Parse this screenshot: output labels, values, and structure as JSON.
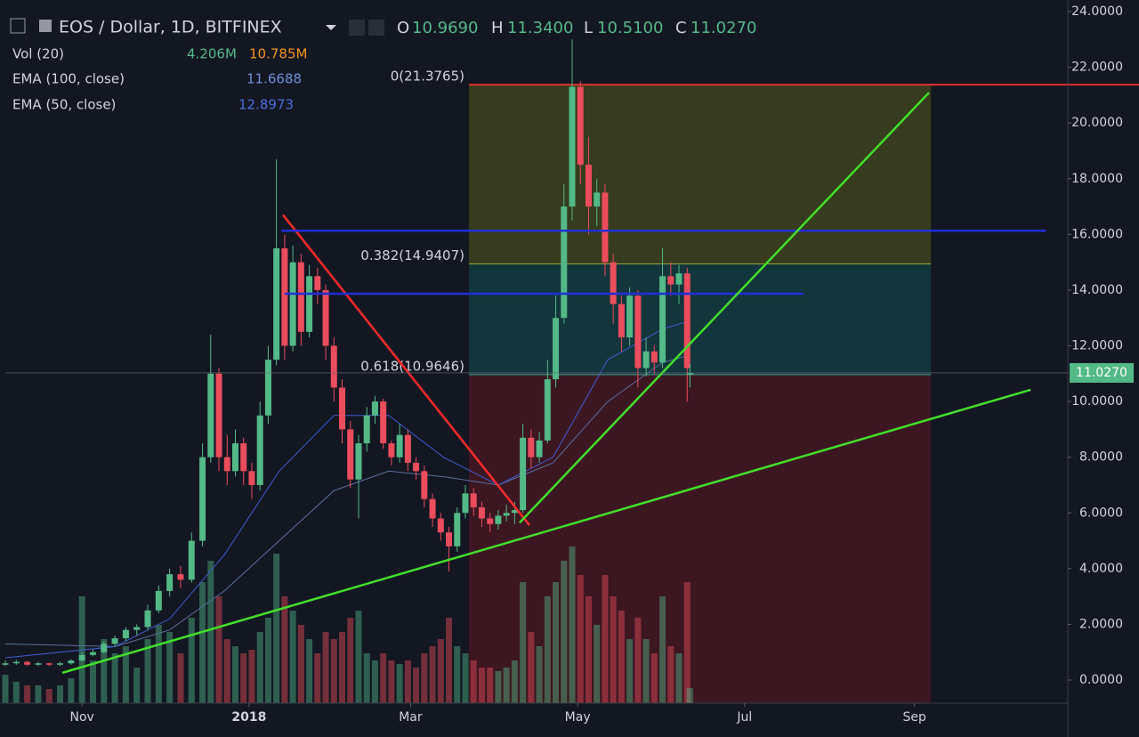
{
  "header": {
    "title": "EOS / Dollar, 1D, BITFINEX",
    "ohlc": [
      {
        "key": "O",
        "value": "10.9690"
      },
      {
        "key": "H",
        "value": "11.3400"
      },
      {
        "key": "L",
        "value": "10.5100"
      },
      {
        "key": "C",
        "value": "11.0270"
      }
    ],
    "studies": [
      {
        "name": "Vol (20)",
        "values": [
          "4.206M",
          "10.785M"
        ]
      },
      {
        "name": "EMA (100, close)",
        "values": [
          "11.6688"
        ]
      },
      {
        "name": "EMA (50, close)",
        "values": [
          "12.8973"
        ]
      }
    ]
  },
  "chart_data": {
    "type": "candlestick",
    "xlim": [
      0,
      388
    ],
    "xticks": [
      {
        "value": 28,
        "label": "Nov"
      },
      {
        "value": 89,
        "label": "2018"
      },
      {
        "value": 148,
        "label": "Mar"
      },
      {
        "value": 209,
        "label": "May"
      },
      {
        "value": 270,
        "label": "Jul"
      },
      {
        "value": 332,
        "label": "Sep"
      }
    ],
    "ylim": [
      0,
      24
    ],
    "yticks": [
      {
        "value": 0,
        "label": "0.0000"
      },
      {
        "value": 2,
        "label": "2.0000"
      },
      {
        "value": 4,
        "label": "4.0000"
      },
      {
        "value": 6,
        "label": "6.0000"
      },
      {
        "value": 8,
        "label": "8.0000"
      },
      {
        "value": 10,
        "label": "10.0000"
      },
      {
        "value": 12,
        "label": "12.0000"
      },
      {
        "value": 14,
        "label": "14.0000"
      },
      {
        "value": 16,
        "label": "16.0000"
      },
      {
        "value": 18,
        "label": "18.0000"
      },
      {
        "value": 20,
        "label": "20.0000"
      },
      {
        "value": 22,
        "label": "22.0000"
      },
      {
        "value": 24,
        "label": "24.0000"
      }
    ],
    "up_color": "#53b987",
    "down_color": "#eb4d5c",
    "x": [
      0,
      4,
      8,
      12,
      16,
      20,
      24,
      28,
      32,
      36,
      40,
      44,
      48,
      52,
      56,
      60,
      64,
      68,
      72,
      75,
      78,
      81,
      84,
      87,
      90,
      93,
      96,
      99,
      102,
      105,
      108,
      111,
      114,
      117,
      120,
      123,
      126,
      129,
      132,
      135,
      138,
      141,
      144,
      147,
      150,
      153,
      156,
      159,
      162,
      165,
      168,
      171,
      174,
      177,
      180,
      183,
      186,
      189,
      192,
      195,
      198,
      201,
      204,
      207,
      210,
      213,
      216,
      219,
      222,
      225,
      228,
      231,
      234,
      237,
      240,
      243,
      246,
      249,
      250
    ],
    "open": [
      0.55,
      0.6,
      0.65,
      0.55,
      0.6,
      0.55,
      0.6,
      0.7,
      0.9,
      1.0,
      1.3,
      1.5,
      1.8,
      1.9,
      2.5,
      3.2,
      3.8,
      3.6,
      5.0,
      8.0,
      11.0,
      8.0,
      7.5,
      8.5,
      7.5,
      7.0,
      9.5,
      11.5,
      15.5,
      12.0,
      15.0,
      12.5,
      14.5,
      14.0,
      12.0,
      10.5,
      9.0,
      7.2,
      8.5,
      9.5,
      10.0,
      8.5,
      8.0,
      8.8,
      7.8,
      7.5,
      6.5,
      5.8,
      5.3,
      4.8,
      6.0,
      6.7,
      6.2,
      5.8,
      5.6,
      5.9,
      6.0,
      6.1,
      8.7,
      8.0,
      8.6,
      10.8,
      13.0,
      17.0,
      21.3,
      18.5,
      17.0,
      17.5,
      15.0,
      13.5,
      12.3,
      13.8,
      11.2,
      11.8,
      11.4,
      14.5,
      14.2,
      14.6,
      10.969
    ],
    "high": [
      0.7,
      0.72,
      0.7,
      0.65,
      0.62,
      0.65,
      0.75,
      1.0,
      1.1,
      1.4,
      1.6,
      1.9,
      2.0,
      2.7,
      3.4,
      4.0,
      4.1,
      5.3,
      8.5,
      12.4,
      11.2,
      8.8,
      9.0,
      8.7,
      7.8,
      10.0,
      12.0,
      18.7,
      16.0,
      15.6,
      15.3,
      14.9,
      14.8,
      14.2,
      12.3,
      10.8,
      9.3,
      8.8,
      9.8,
      10.2,
      10.1,
      8.6,
      9.2,
      9.0,
      8.0,
      7.7,
      6.7,
      6.0,
      5.5,
      6.2,
      7.0,
      6.9,
      6.4,
      6.0,
      6.1,
      6.3,
      6.4,
      9.2,
      9.0,
      8.9,
      11.5,
      13.8,
      17.8,
      23.0,
      21.5,
      19.5,
      18.0,
      17.8,
      15.3,
      13.8,
      14.1,
      14.0,
      12.3,
      12.0,
      15.5,
      15.0,
      14.9,
      14.8,
      11.34
    ],
    "low": [
      0.5,
      0.55,
      0.5,
      0.5,
      0.5,
      0.5,
      0.55,
      0.65,
      0.85,
      0.95,
      1.2,
      1.4,
      1.6,
      1.8,
      2.4,
      3.0,
      3.3,
      3.5,
      4.8,
      7.8,
      7.5,
      7.0,
      7.3,
      7.0,
      6.5,
      6.8,
      9.2,
      11.3,
      11.5,
      11.8,
      12.0,
      12.3,
      13.5,
      11.5,
      10.0,
      8.5,
      6.9,
      5.8,
      8.2,
      9.2,
      8.3,
      7.7,
      7.8,
      7.5,
      7.2,
      6.2,
      5.5,
      5.0,
      3.9,
      4.6,
      5.8,
      5.9,
      5.5,
      5.3,
      5.4,
      5.7,
      5.6,
      6.0,
      7.6,
      7.8,
      8.5,
      10.5,
      12.8,
      16.5,
      17.8,
      16.0,
      16.3,
      14.5,
      12.8,
      11.8,
      12.0,
      10.5,
      10.9,
      11.0,
      11.2,
      13.8,
      13.5,
      10.0,
      10.51
    ],
    "close": [
      0.6,
      0.65,
      0.55,
      0.6,
      0.55,
      0.6,
      0.7,
      0.9,
      1.0,
      1.3,
      1.5,
      1.8,
      1.9,
      2.5,
      3.2,
      3.8,
      3.6,
      5.0,
      8.0,
      11.0,
      8.0,
      7.5,
      8.5,
      7.5,
      7.0,
      9.5,
      11.5,
      15.5,
      12.0,
      15.0,
      12.5,
      14.5,
      14.0,
      12.0,
      10.5,
      9.0,
      7.2,
      8.5,
      9.5,
      10.0,
      8.5,
      8.0,
      8.8,
      7.8,
      7.5,
      6.5,
      5.8,
      5.3,
      4.8,
      6.0,
      6.7,
      6.2,
      5.8,
      5.6,
      5.9,
      6.0,
      6.1,
      8.7,
      8.0,
      8.6,
      10.8,
      13.0,
      17.0,
      21.3,
      18.5,
      17.0,
      17.5,
      15.0,
      13.5,
      12.3,
      13.8,
      11.2,
      11.8,
      11.4,
      14.5,
      14.2,
      14.6,
      11.2,
      11.027
    ],
    "volume": [
      8,
      6,
      5,
      5,
      4,
      5,
      7,
      30,
      12,
      18,
      14,
      16,
      10,
      18,
      22,
      20,
      14,
      24,
      34,
      40,
      30,
      18,
      16,
      14,
      15,
      20,
      24,
      42,
      30,
      26,
      22,
      18,
      14,
      20,
      18,
      20,
      24,
      26,
      14,
      12,
      14,
      12,
      11,
      12,
      10,
      14,
      16,
      18,
      24,
      16,
      14,
      12,
      10,
      10,
      9,
      10,
      12,
      34,
      20,
      16,
      30,
      34,
      40,
      44,
      36,
      30,
      22,
      36,
      30,
      26,
      18,
      24,
      18,
      14,
      30,
      16,
      14,
      34,
      4.206
    ],
    "vlim": [
      0,
      200
    ],
    "ema": [
      {
        "name": "EMA (100, close)",
        "color": "#5b6f9e",
        "x": [
          0,
          40,
          60,
          80,
          100,
          120,
          140,
          160,
          180,
          200,
          220,
          240,
          250
        ],
        "values": [
          1.3,
          1.2,
          1.8,
          3.2,
          5.0,
          6.8,
          7.5,
          7.3,
          7.0,
          7.8,
          10.0,
          11.4,
          11.67
        ]
      },
      {
        "name": "EMA (50, close)",
        "color": "#3f5ccf",
        "x": [
          0,
          40,
          60,
          80,
          100,
          120,
          140,
          160,
          180,
          200,
          220,
          240,
          250
        ],
        "values": [
          0.8,
          1.2,
          2.2,
          4.5,
          7.5,
          9.5,
          9.5,
          8.0,
          7.0,
          8.0,
          11.5,
          12.6,
          12.9
        ]
      }
    ],
    "last_price": {
      "value": 11.027,
      "label": "11.0270"
    },
    "fib": {
      "x": [
        169.3,
        338
      ],
      "levels": [
        {
          "value": 21.3765,
          "label": "0(21.3765)",
          "color": "#e03030"
        },
        {
          "value": 14.9407,
          "label": "0.382(14.9407)",
          "color": "#9aa83a"
        },
        {
          "value": 10.9646,
          "label": "0.618(10.9646)",
          "color": "#3fa58f"
        }
      ],
      "fills": [
        "rgba(120,130,20,0.35)",
        "rgba(20,110,110,0.35)",
        "rgba(110,25,35,0.45)"
      ]
    },
    "drawings": [
      {
        "color": "#ff2a2a",
        "x": [
          101.4,
          191.4
        ],
        "y": [
          16.7,
          5.56
        ]
      },
      {
        "color": "#1f2fd8",
        "x": [
          100.8,
          380
        ],
        "y": [
          16.13,
          16.13
        ]
      },
      {
        "color": "#1f2fd8",
        "x": [
          102,
          291.5
        ],
        "y": [
          13.87,
          13.87
        ]
      },
      {
        "color": "#42e02a",
        "x": [
          20.8,
          374.4
        ],
        "y": [
          0.26,
          10.42
        ]
      },
      {
        "color": "#42e02a",
        "x": [
          187.8,
          337.3
        ],
        "y": [
          5.65,
          21.09
        ]
      }
    ]
  }
}
